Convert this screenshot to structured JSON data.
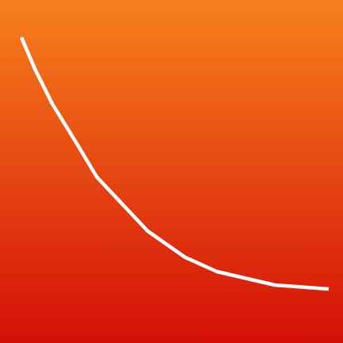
{
  "icon": {
    "name": "declining-trend-line-icon",
    "background": {
      "top_color": "#F7801C",
      "bottom_color": "#D40F08"
    },
    "curve": {
      "color": "#FFFFFF",
      "shape": "decaying-curve"
    }
  }
}
